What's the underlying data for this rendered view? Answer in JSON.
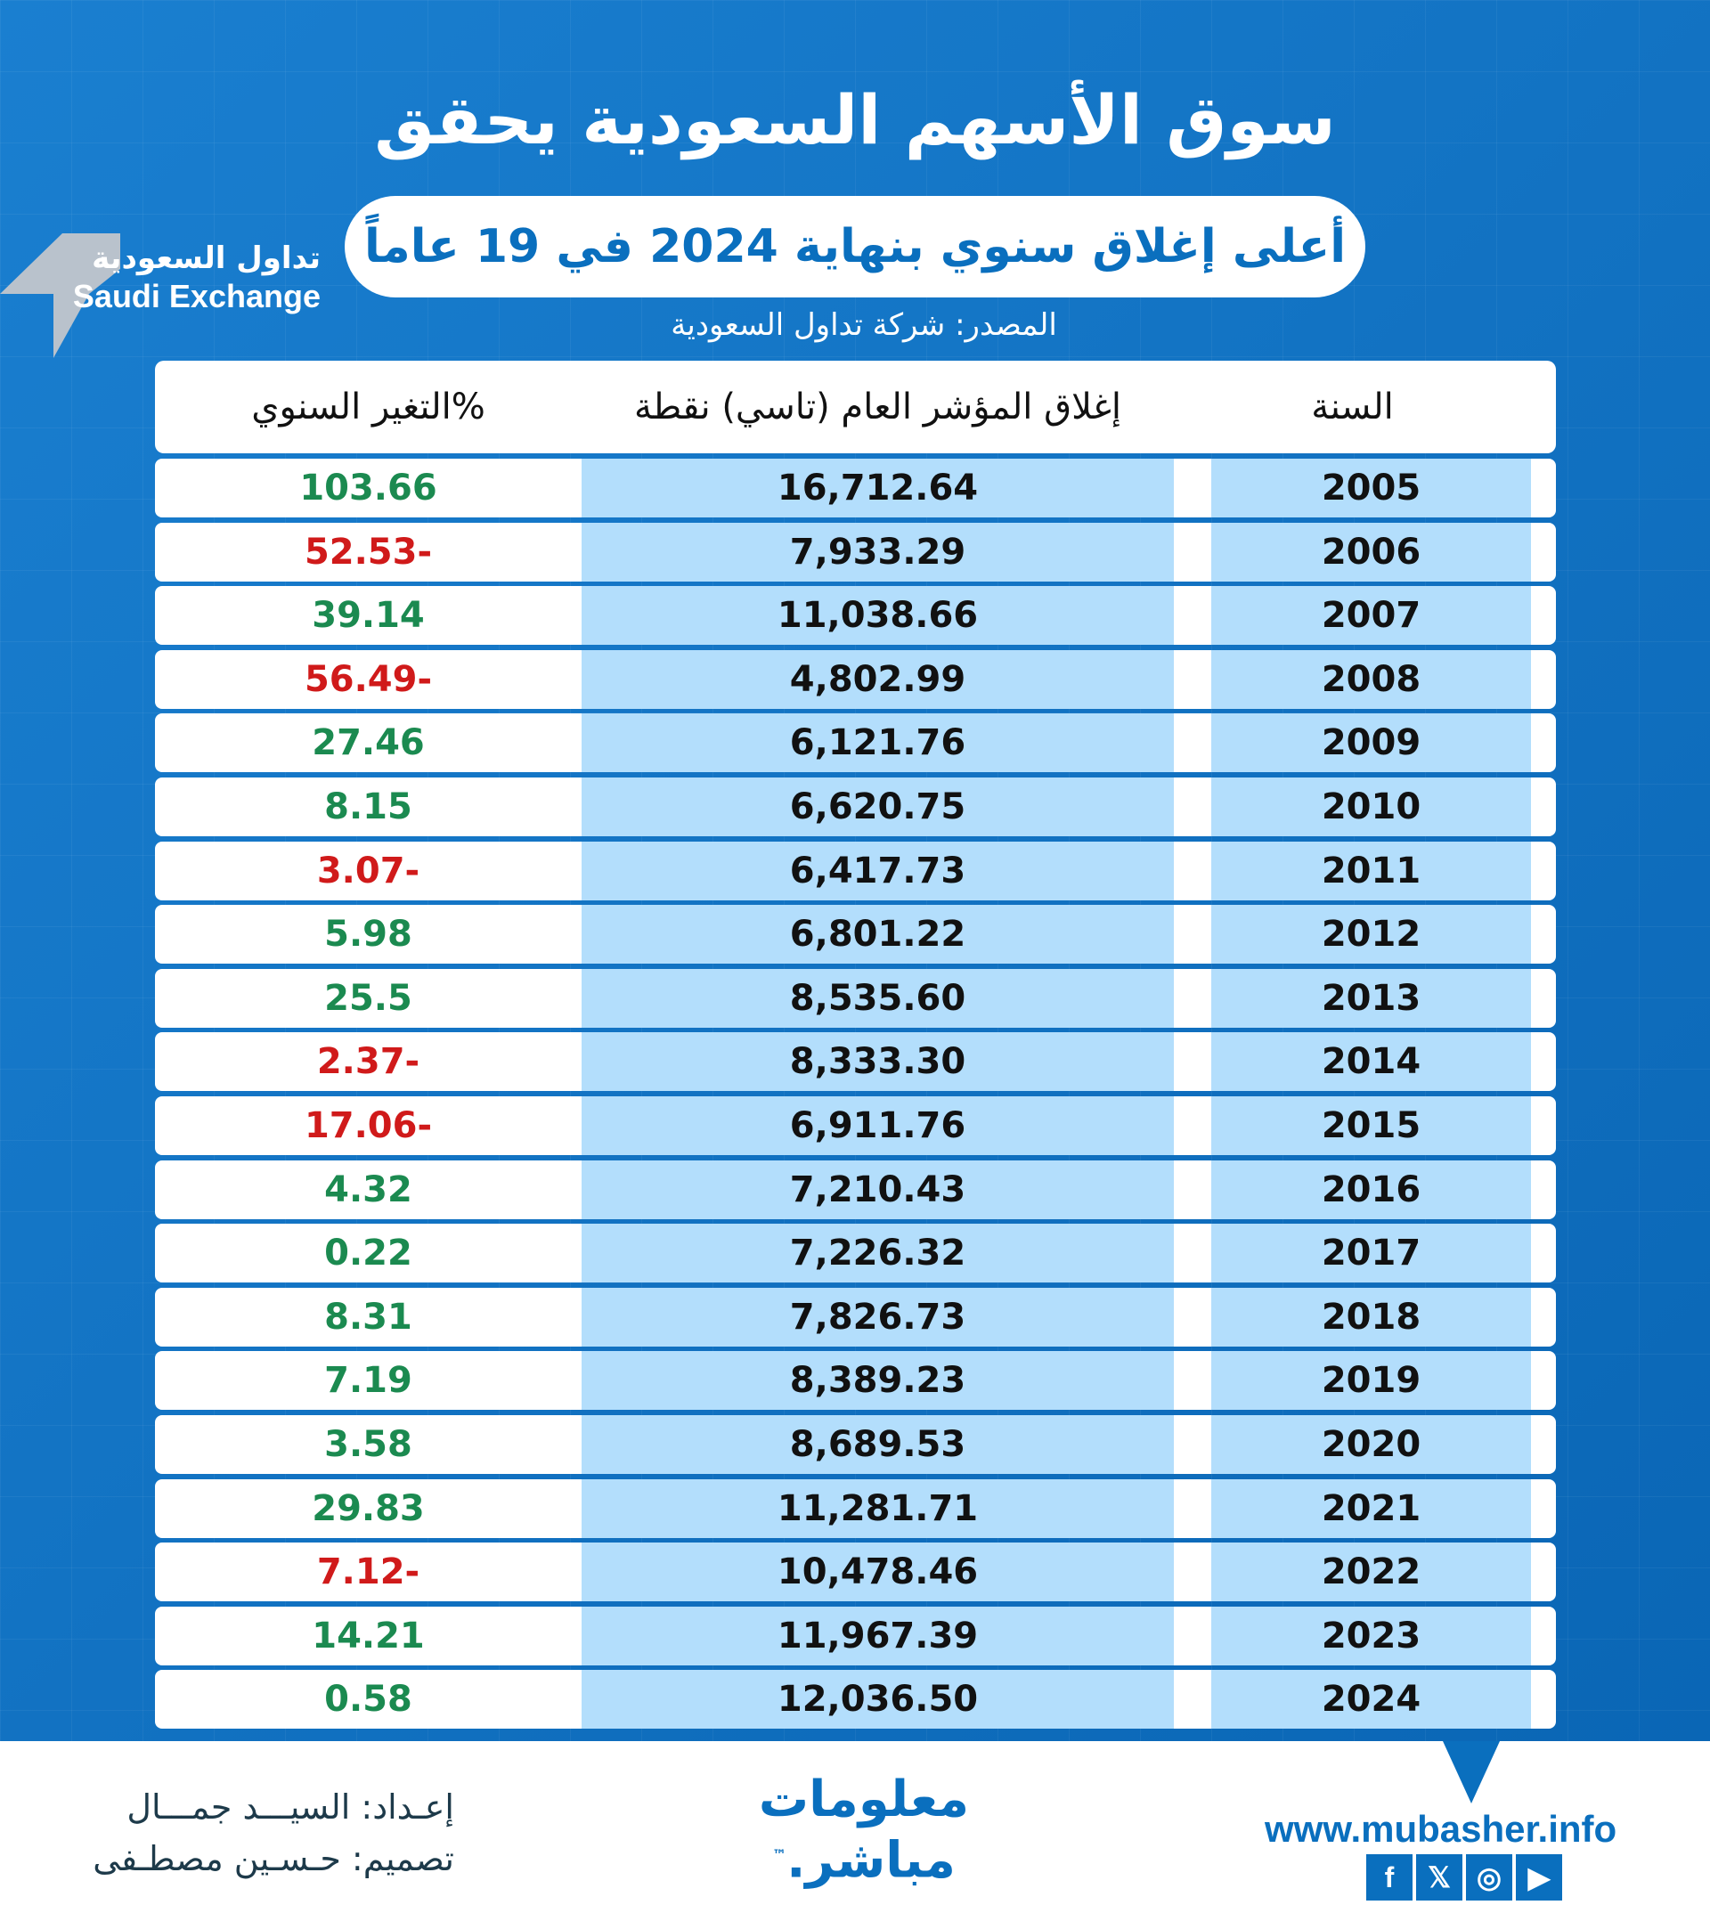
{
  "title": "سوق الأسهم السعودية يحقق",
  "subtitle": "أعلى إغلاق سنوي بنهاية 2024 في 19 عاماً",
  "logo": {
    "ar": "تداول السعودية",
    "en": "Saudi Exchange"
  },
  "source": "المصدر: شركة تداول السعودية",
  "table": {
    "headers": {
      "year": "السنة",
      "close": "إغلاق المؤشر العام (تاسي) نقطة",
      "change": "التغير السنوي%"
    },
    "rows": [
      {
        "year": "2005",
        "close": "16,712.64",
        "change": "103.66",
        "dir": "pos"
      },
      {
        "year": "2006",
        "close": "7,933.29",
        "change": "52.53-",
        "dir": "neg"
      },
      {
        "year": "2007",
        "close": "11,038.66",
        "change": "39.14",
        "dir": "pos"
      },
      {
        "year": "2008",
        "close": "4,802.99",
        "change": "56.49-",
        "dir": "neg"
      },
      {
        "year": "2009",
        "close": "6,121.76",
        "change": "27.46",
        "dir": "pos"
      },
      {
        "year": "2010",
        "close": "6,620.75",
        "change": "8.15",
        "dir": "pos"
      },
      {
        "year": "2011",
        "close": "6,417.73",
        "change": "3.07-",
        "dir": "neg"
      },
      {
        "year": "2012",
        "close": "6,801.22",
        "change": "5.98",
        "dir": "pos"
      },
      {
        "year": "2013",
        "close": "8,535.60",
        "change": "25.5",
        "dir": "pos"
      },
      {
        "year": "2014",
        "close": "8,333.30",
        "change": "2.37-",
        "dir": "neg"
      },
      {
        "year": "2015",
        "close": "6,911.76",
        "change": "17.06-",
        "dir": "neg"
      },
      {
        "year": "2016",
        "close": "7,210.43",
        "change": "4.32",
        "dir": "pos"
      },
      {
        "year": "2017",
        "close": "7,226.32",
        "change": "0.22",
        "dir": "pos"
      },
      {
        "year": "2018",
        "close": "7,826.73",
        "change": "8.31",
        "dir": "pos"
      },
      {
        "year": "2019",
        "close": "8,389.23",
        "change": "7.19",
        "dir": "pos"
      },
      {
        "year": "2020",
        "close": "8,689.53",
        "change": "3.58",
        "dir": "pos"
      },
      {
        "year": "2021",
        "close": "11,281.71",
        "change": "29.83",
        "dir": "pos"
      },
      {
        "year": "2022",
        "close": "10,478.46",
        "change": "7.12-",
        "dir": "neg"
      },
      {
        "year": "2023",
        "close": "11,967.39",
        "change": "14.21",
        "dir": "pos"
      },
      {
        "year": "2024",
        "close": "12,036.50",
        "change": "0.58",
        "dir": "pos"
      }
    ]
  },
  "footer": {
    "prepared": "إعـداد: السيـــد جمـــال",
    "design": "تصميم: حـسـين مصطـفى",
    "brand_line1": "معلومات",
    "brand_line2": "مباشر.",
    "tm": "™",
    "url": "www.mubasher.info",
    "social": [
      "facebook",
      "x",
      "instagram",
      "youtube"
    ]
  },
  "colors": {
    "brand": "#0a6fbe",
    "positive": "#1b8a50",
    "negative": "#d01a1a",
    "cell": "#b3defc"
  }
}
